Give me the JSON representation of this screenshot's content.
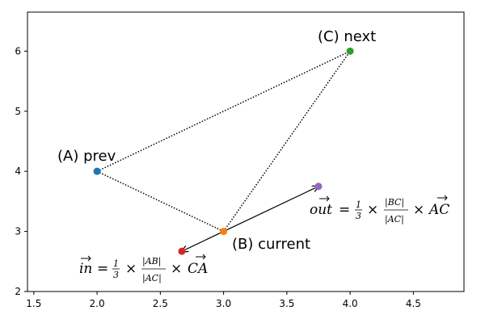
{
  "chart_data": {
    "type": "scatter",
    "title": "",
    "xlabel": "",
    "ylabel": "",
    "xlim": [
      1.45,
      4.9
    ],
    "ylim": [
      2.0,
      6.65
    ],
    "grid": false,
    "xticks": [
      1.5,
      2.0,
      2.5,
      3.0,
      3.5,
      4.0,
      4.5
    ],
    "yticks": [
      2,
      3,
      4,
      5,
      6
    ],
    "xtick_labels": [
      "1.5",
      "2.0",
      "2.5",
      "3.0",
      "3.5",
      "4.0",
      "4.5"
    ],
    "ytick_labels": [
      "2",
      "3",
      "4",
      "5",
      "6"
    ],
    "points": [
      {
        "key": "prev",
        "x": 2.0,
        "y": 4.0,
        "color": "#1f77b4",
        "label": "(A) prev"
      },
      {
        "key": "current",
        "x": 3.0,
        "y": 3.0,
        "color": "#ff7f0e",
        "label": "(B) current"
      },
      {
        "key": "next",
        "x": 4.0,
        "y": 6.0,
        "color": "#2ca02c",
        "label": "(C) next"
      },
      {
        "key": "in",
        "x": 2.67,
        "y": 2.67,
        "color": "#d62728",
        "label": ""
      },
      {
        "key": "out",
        "x": 3.75,
        "y": 3.75,
        "color": "#9467bd",
        "label": ""
      }
    ],
    "dotted_lines": [
      {
        "from": [
          2.0,
          4.0
        ],
        "to": [
          4.0,
          6.0
        ]
      },
      {
        "from": [
          2.0,
          4.0
        ],
        "to": [
          3.0,
          3.0
        ]
      },
      {
        "from": [
          3.0,
          3.0
        ],
        "to": [
          4.0,
          6.0
        ]
      }
    ],
    "arrows": [
      {
        "from": [
          3.0,
          3.0
        ],
        "to": [
          2.67,
          2.67
        ]
      },
      {
        "from": [
          3.0,
          3.0
        ],
        "to": [
          3.75,
          3.75
        ]
      }
    ],
    "annotations": {
      "in_formula": {
        "lhs": "in",
        "equals": "=",
        "frac_num": "1",
        "frac_den": "3",
        "times1": "×",
        "ratio_num": "|AB|",
        "ratio_den": "|AC|",
        "times2": "×",
        "vector": "CA"
      },
      "out_formula": {
        "lhs": "out",
        "equals": "=",
        "frac_num": "1",
        "frac_den": "3",
        "times1": "×",
        "ratio_num": "|BC|",
        "ratio_den": "|AC|",
        "times2": "×",
        "vector": "AC"
      }
    }
  }
}
